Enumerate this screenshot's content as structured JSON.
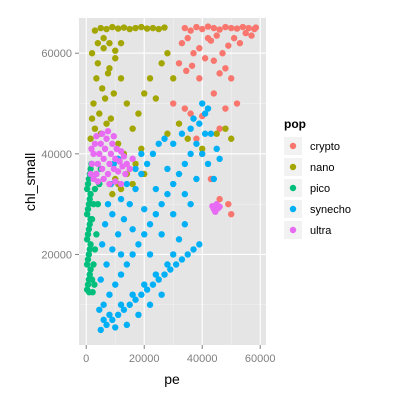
{
  "chart_data": {
    "type": "scatter",
    "title": "",
    "xlabel": "pe",
    "ylabel": "chl_small",
    "xlim": [
      -2500,
      62000
    ],
    "ylim": [
      2000,
      67000
    ],
    "xticks": [
      0,
      20000,
      40000,
      60000
    ],
    "xtick_labels": [
      "0",
      "20000",
      "40000",
      "60000"
    ],
    "yticks": [
      20000,
      40000,
      60000
    ],
    "ytick_labels": [
      "20000",
      "40000",
      "60000"
    ],
    "grid": true,
    "background": "#e5e5e5",
    "legend": {
      "title": "pop",
      "placement": "right",
      "entries": [
        "crypto",
        "nano",
        "pico",
        "synecho",
        "ultra"
      ]
    },
    "series": [
      {
        "name": "crypto",
        "color": "#f8766d",
        "points": [
          [
            34000,
            65000
          ],
          [
            36000,
            64500
          ],
          [
            38000,
            65200
          ],
          [
            40000,
            64800
          ],
          [
            42000,
            65300
          ],
          [
            44000,
            65000
          ],
          [
            46000,
            64700
          ],
          [
            48000,
            65200
          ],
          [
            50000,
            65000
          ],
          [
            52000,
            64900
          ],
          [
            54000,
            65200
          ],
          [
            56000,
            65000
          ],
          [
            58000,
            64800
          ],
          [
            58500,
            65100
          ],
          [
            33000,
            62000
          ],
          [
            35000,
            63000
          ],
          [
            37000,
            60000
          ],
          [
            39000,
            61000
          ],
          [
            41000,
            59000
          ],
          [
            43000,
            62500
          ],
          [
            45000,
            63500
          ],
          [
            47000,
            60000
          ],
          [
            49000,
            61500
          ],
          [
            51000,
            63000
          ],
          [
            53000,
            62000
          ],
          [
            32000,
            58000
          ],
          [
            34500,
            56500
          ],
          [
            36500,
            57500
          ],
          [
            44000,
            58500
          ],
          [
            46000,
            56000
          ],
          [
            48000,
            57000
          ],
          [
            50000,
            55000
          ],
          [
            34000,
            49000
          ],
          [
            36000,
            48000
          ],
          [
            40000,
            47500
          ],
          [
            44000,
            52000
          ],
          [
            48000,
            49000
          ],
          [
            52000,
            50000
          ],
          [
            46000,
            45000
          ],
          [
            40000,
            40000
          ],
          [
            43000,
            35000
          ],
          [
            46000,
            31000
          ],
          [
            50000,
            28000
          ],
          [
            49000,
            30000
          ],
          [
            38000,
            43000
          ],
          [
            30000,
            50000
          ],
          [
            42000,
            63000
          ],
          [
            55000,
            64000
          ],
          [
            57000,
            63500
          ],
          [
            39000,
            55000
          ]
        ]
      },
      {
        "name": "nano",
        "color": "#a3a500",
        "points": [
          [
            3000,
            64500
          ],
          [
            5000,
            65000
          ],
          [
            7000,
            64800
          ],
          [
            9000,
            65200
          ],
          [
            11000,
            64900
          ],
          [
            13000,
            65100
          ],
          [
            15000,
            64800
          ],
          [
            17000,
            65000
          ],
          [
            19000,
            65200
          ],
          [
            21000,
            64900
          ],
          [
            23000,
            65000
          ],
          [
            25000,
            64800
          ],
          [
            27000,
            65100
          ],
          [
            2000,
            60000
          ],
          [
            4000,
            58000
          ],
          [
            6000,
            61000
          ],
          [
            8000,
            57000
          ],
          [
            10000,
            59000
          ],
          [
            3500,
            55000
          ],
          [
            5500,
            53000
          ],
          [
            7500,
            56000
          ],
          [
            9500,
            52000
          ],
          [
            2500,
            50000
          ],
          [
            4500,
            48000
          ],
          [
            6500,
            51000
          ],
          [
            8500,
            47000
          ],
          [
            3000,
            45000
          ],
          [
            5000,
            44000
          ],
          [
            7000,
            46000
          ],
          [
            12000,
            55000
          ],
          [
            14000,
            50000
          ],
          [
            16000,
            45000
          ],
          [
            11000,
            42000
          ],
          [
            13000,
            40000
          ],
          [
            15000,
            37000
          ],
          [
            18000,
            48000
          ],
          [
            20000,
            52000
          ],
          [
            22000,
            55000
          ],
          [
            24000,
            51000
          ],
          [
            26000,
            58000
          ],
          [
            28000,
            60000
          ],
          [
            30000,
            55000
          ],
          [
            17000,
            38000
          ],
          [
            19000,
            41000
          ],
          [
            10000,
            35000
          ],
          [
            12000,
            33000
          ],
          [
            14000,
            36000
          ],
          [
            4000,
            62000
          ],
          [
            6000,
            63000
          ],
          [
            8000,
            62000
          ],
          [
            10000,
            60500
          ],
          [
            12000,
            62000
          ],
          [
            2000,
            47000
          ],
          [
            1500,
            43000
          ],
          [
            45000,
            44000
          ],
          [
            48000,
            45000
          ],
          [
            50000,
            43000
          ],
          [
            40000,
            41000
          ],
          [
            32000,
            46000
          ],
          [
            28000,
            44000
          ],
          [
            9000,
            32000
          ],
          [
            11000,
            34000
          ],
          [
            16000,
            34000
          ],
          [
            20000,
            36000
          ],
          [
            35000,
            43000
          ]
        ]
      },
      {
        "name": "pico",
        "color": "#00bf7d",
        "points": [
          [
            300,
            13000
          ],
          [
            600,
            14000
          ],
          [
            900,
            15000
          ],
          [
            1200,
            16000
          ],
          [
            1500,
            17000
          ],
          [
            300,
            18000
          ],
          [
            600,
            19000
          ],
          [
            900,
            20000
          ],
          [
            1200,
            21000
          ],
          [
            1500,
            22000
          ],
          [
            300,
            23000
          ],
          [
            600,
            24000
          ],
          [
            900,
            25000
          ],
          [
            1200,
            26000
          ],
          [
            1500,
            27000
          ],
          [
            300,
            28000
          ],
          [
            600,
            29000
          ],
          [
            900,
            30000
          ],
          [
            1200,
            31000
          ],
          [
            1500,
            32000
          ],
          [
            300,
            33000
          ],
          [
            600,
            34000
          ],
          [
            900,
            35000
          ],
          [
            1200,
            36000
          ],
          [
            1500,
            37000
          ],
          [
            2000,
            15000
          ],
          [
            2500,
            18000
          ],
          [
            3000,
            21000
          ],
          [
            3500,
            24000
          ],
          [
            2000,
            27000
          ],
          [
            2500,
            30000
          ],
          [
            3000,
            33000
          ],
          [
            3500,
            36000
          ],
          [
            2200,
            12500
          ],
          [
            1800,
            38000
          ],
          [
            4000,
            30000
          ],
          [
            4500,
            34000
          ],
          [
            5000,
            37000
          ],
          [
            1000,
            12500
          ],
          [
            2800,
            14000
          ]
        ]
      },
      {
        "name": "synecho",
        "color": "#00b0f6",
        "points": [
          [
            5000,
            5000
          ],
          [
            7000,
            6000
          ],
          [
            9000,
            7000
          ],
          [
            11000,
            8000
          ],
          [
            13000,
            9000
          ],
          [
            15000,
            10000
          ],
          [
            17000,
            11000
          ],
          [
            19000,
            12000
          ],
          [
            21000,
            13000
          ],
          [
            23000,
            14000
          ],
          [
            25000,
            15000
          ],
          [
            27000,
            16000
          ],
          [
            29000,
            17000
          ],
          [
            31000,
            18000
          ],
          [
            33000,
            19000
          ],
          [
            35000,
            20000
          ],
          [
            37000,
            21000
          ],
          [
            39000,
            22000
          ],
          [
            6000,
            10000
          ],
          [
            8000,
            12000
          ],
          [
            10000,
            14000
          ],
          [
            12000,
            16000
          ],
          [
            14000,
            18000
          ],
          [
            16000,
            20000
          ],
          [
            18000,
            22000
          ],
          [
            20000,
            24000
          ],
          [
            22000,
            26000
          ],
          [
            24000,
            28000
          ],
          [
            26000,
            30000
          ],
          [
            28000,
            32000
          ],
          [
            30000,
            34000
          ],
          [
            32000,
            36000
          ],
          [
            34000,
            38000
          ],
          [
            36000,
            40000
          ],
          [
            38000,
            42000
          ],
          [
            5000,
            15000
          ],
          [
            7000,
            18000
          ],
          [
            9000,
            21000
          ],
          [
            11000,
            24000
          ],
          [
            13000,
            27000
          ],
          [
            15000,
            30000
          ],
          [
            17000,
            33000
          ],
          [
            19000,
            36000
          ],
          [
            21000,
            38000
          ],
          [
            23000,
            40000
          ],
          [
            25000,
            42000
          ],
          [
            27000,
            43000
          ],
          [
            30000,
            42000
          ],
          [
            33000,
            44000
          ],
          [
            36000,
            45000
          ],
          [
            39000,
            46000
          ],
          [
            41000,
            44000
          ],
          [
            40000,
            40000
          ],
          [
            38000,
            35000
          ],
          [
            36000,
            30000
          ],
          [
            34000,
            26000
          ],
          [
            32000,
            23000
          ],
          [
            30000,
            20000
          ],
          [
            28000,
            18000
          ],
          [
            24000,
            16000
          ],
          [
            20000,
            14000
          ],
          [
            16000,
            12000
          ],
          [
            12000,
            10000
          ],
          [
            8000,
            8000
          ],
          [
            6000,
            7000
          ],
          [
            14000,
            6000
          ],
          [
            18000,
            8000
          ],
          [
            22000,
            10000
          ],
          [
            26000,
            12000
          ],
          [
            10000,
            5500
          ],
          [
            20000,
            29000
          ],
          [
            24000,
            33000
          ],
          [
            28000,
            37000
          ],
          [
            12000,
            20000
          ],
          [
            16000,
            25000
          ],
          [
            22000,
            20000
          ],
          [
            26000,
            24000
          ],
          [
            30000,
            28000
          ],
          [
            34000,
            32000
          ],
          [
            9000,
            28000
          ],
          [
            12000,
            31000
          ],
          [
            17000,
            37000
          ],
          [
            19000,
            40000
          ],
          [
            14000,
            34000
          ],
          [
            41000,
            48000
          ],
          [
            43000,
            44000
          ],
          [
            45000,
            41000
          ],
          [
            42000,
            38000
          ],
          [
            44000,
            35000
          ],
          [
            46000,
            39000
          ],
          [
            4500,
            9000
          ],
          [
            5500,
            22000
          ],
          [
            6500,
            26000
          ],
          [
            7500,
            30000
          ],
          [
            8500,
            34000
          ],
          [
            9500,
            38000
          ],
          [
            11000,
            39000
          ],
          [
            42000,
            49000
          ],
          [
            40000,
            50000
          ],
          [
            37000,
            47000
          ]
        ]
      },
      {
        "name": "ultra",
        "color": "#e76bf3",
        "points": [
          [
            1500,
            36000
          ],
          [
            2000,
            38000
          ],
          [
            2500,
            40000
          ],
          [
            3000,
            42000
          ],
          [
            3500,
            36000
          ],
          [
            4000,
            38000
          ],
          [
            4500,
            40000
          ],
          [
            5000,
            42000
          ],
          [
            5500,
            37000
          ],
          [
            6000,
            39000
          ],
          [
            6500,
            41000
          ],
          [
            7000,
            43000
          ],
          [
            7500,
            36000
          ],
          [
            8000,
            38000
          ],
          [
            8500,
            40000
          ],
          [
            9000,
            42000
          ],
          [
            9500,
            37000
          ],
          [
            10000,
            39000
          ],
          [
            10500,
            41000
          ],
          [
            11000,
            36500
          ],
          [
            11500,
            38500
          ],
          [
            12000,
            40500
          ],
          [
            12500,
            37500
          ],
          [
            13000,
            39500
          ],
          [
            13500,
            36000
          ],
          [
            14000,
            38000
          ],
          [
            2500,
            35000
          ],
          [
            4000,
            34500
          ],
          [
            6000,
            35000
          ],
          [
            8000,
            34000
          ],
          [
            10000,
            34500
          ],
          [
            12000,
            34000
          ],
          [
            3500,
            43500
          ],
          [
            5500,
            44000
          ],
          [
            7500,
            44500
          ],
          [
            9500,
            43500
          ],
          [
            1800,
            41000
          ],
          [
            15000,
            37000
          ],
          [
            16000,
            39000
          ],
          [
            44000,
            29000
          ],
          [
            45000,
            30000
          ],
          [
            46000,
            29500
          ],
          [
            44500,
            28500
          ],
          [
            45500,
            29200
          ],
          [
            43500,
            29600
          ]
        ]
      }
    ]
  }
}
